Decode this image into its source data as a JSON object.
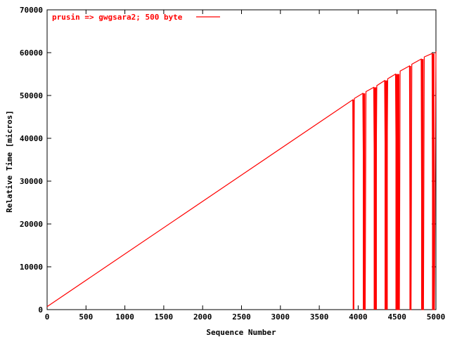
{
  "chart_data": {
    "type": "line",
    "xlabel": "Sequence Number",
    "ylabel": "Relative Time [micros]",
    "xlim": [
      0,
      5000
    ],
    "ylim": [
      0,
      70000
    ],
    "xticks": [
      0,
      500,
      1000,
      1500,
      2000,
      2500,
      3000,
      3500,
      4000,
      4500,
      5000
    ],
    "yticks": [
      0,
      10000,
      20000,
      30000,
      40000,
      50000,
      60000,
      70000
    ],
    "grid": false,
    "legend_position": "top-left",
    "series_color": "#ff0000",
    "series": [
      {
        "name": "prusin => gwgsara2; 500 byte",
        "x": [
          0,
          3930,
          3940,
          3950,
          4060,
          4080,
          4090,
          4100,
          4200,
          4220,
          4240,
          4340,
          4360,
          4380,
          4480,
          4500,
          4530,
          4540,
          4660,
          4670,
          4680,
          4690,
          4810,
          4820,
          4840,
          4850,
          4950,
          4960,
          4980,
          5000
        ],
        "y": [
          700,
          49000,
          0,
          49300,
          50500,
          0,
          0,
          50900,
          51900,
          0,
          52300,
          53500,
          0,
          53900,
          55000,
          0,
          0,
          55700,
          56900,
          0,
          0,
          57300,
          58500,
          0,
          0,
          59000,
          59800,
          0,
          0,
          60300
        ]
      }
    ]
  }
}
